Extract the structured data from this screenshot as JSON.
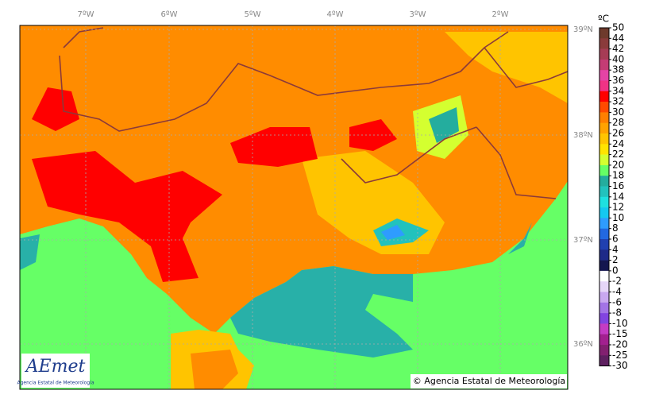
{
  "map": {
    "lon_labels": [
      "7ºW",
      "6ºW",
      "5ºW",
      "4ºW",
      "3ºW",
      "2ºW"
    ],
    "lat_labels": [
      "39ºN",
      "38ºN",
      "37ºN",
      "36ºN"
    ],
    "copyright": "© Agencia Estatal de Meteorología",
    "logo": {
      "name": "AEmet",
      "subtitle": "Agencia Estatal de Meteorología"
    }
  },
  "colorbar": {
    "unit": "ºC",
    "labels": [
      50,
      44,
      42,
      40,
      38,
      36,
      34,
      32,
      30,
      28,
      26,
      24,
      22,
      20,
      18,
      16,
      14,
      12,
      10,
      8,
      6,
      4,
      2,
      0,
      -2,
      -4,
      -6,
      -8,
      -10,
      -15,
      -20,
      -25,
      -30
    ],
    "colors": [
      "#6e3a2c",
      "#8a3b3b",
      "#a63c55",
      "#c43c74",
      "#e543a5",
      "#f03285",
      "#ff0000",
      "#ff4a00",
      "#ff7f00",
      "#ffa200",
      "#ffc400",
      "#ffe400",
      "#d4ff30",
      "#66ff66",
      "#24ad9e",
      "#22c2bd",
      "#1ee0e0",
      "#14c8f0",
      "#2e9cff",
      "#2268e0",
      "#2040b0",
      "#1e2a88",
      "#14164f",
      "#ffffff",
      "#e6d6f8",
      "#c9a8f0",
      "#a374e6",
      "#8244e0",
      "#c43cc4",
      "#a2208f",
      "#822070",
      "#5e2060"
    ]
  }
}
